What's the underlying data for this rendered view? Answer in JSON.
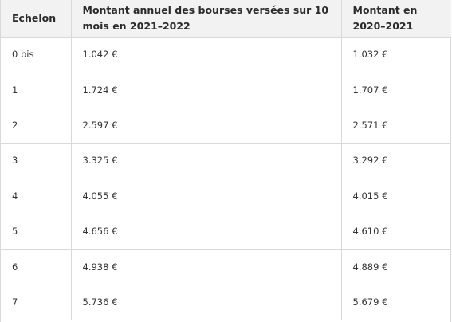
{
  "table": {
    "headers": [
      "Echelon",
      "Montant annuel des bourses versées sur 10 mois en 2021–2022",
      "Montant en 2020–2021"
    ],
    "rows": [
      [
        "0 bis",
        "1.042 €",
        "1.032 €"
      ],
      [
        "1",
        "1.724 €",
        "1.707 €"
      ],
      [
        "2",
        "2.597 €",
        "2.571 €"
      ],
      [
        "3",
        "3.325 €",
        "3.292 €"
      ],
      [
        "4",
        "4.055 €",
        "4.015 €"
      ],
      [
        "5",
        "4.656 €",
        "4.610 €"
      ],
      [
        "6",
        "4.938 €",
        "4.889 €"
      ],
      [
        "7",
        "5.736 €",
        "5.679 €"
      ]
    ]
  }
}
